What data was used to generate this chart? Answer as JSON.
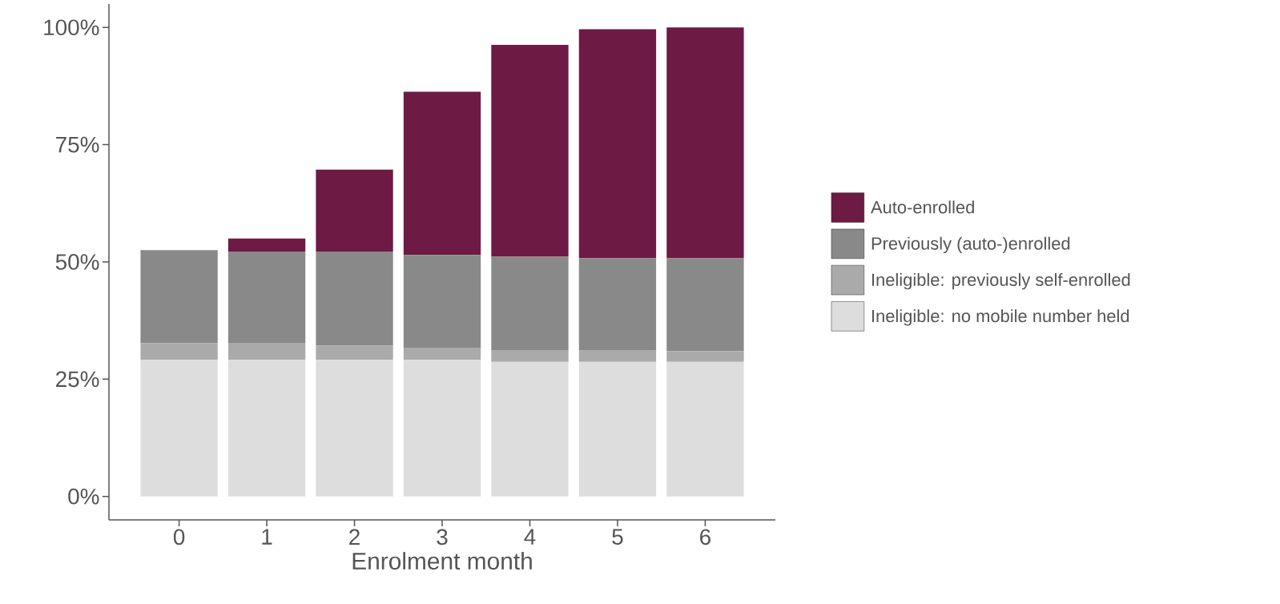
{
  "chart_data": {
    "type": "bar",
    "stacked": true,
    "xlabel": "Enrolment month",
    "categories": [
      "0",
      "1",
      "2",
      "3",
      "4",
      "5",
      "6"
    ],
    "series": [
      {
        "name": "Ineligible: no mobile number held",
        "color": "#dddddd",
        "values": [
          29.1,
          29.1,
          29.1,
          29.1,
          28.7,
          28.7,
          28.7
        ]
      },
      {
        "name": "Ineligible: previously self-enrolled",
        "color": "#aaaaaa",
        "values": [
          3.6,
          3.5,
          3.1,
          2.6,
          2.5,
          2.5,
          2.3
        ]
      },
      {
        "name": "Previously (auto-)enrolled",
        "color": "#898989",
        "values": [
          19.8,
          19.6,
          20.0,
          19.8,
          19.9,
          19.6,
          19.8
        ]
      },
      {
        "name": "Auto-enrolled",
        "color": "#6d1a45",
        "values": [
          0,
          2.8,
          17.5,
          34.8,
          45.2,
          48.8,
          49.2
        ]
      }
    ],
    "ylim": [
      -5,
      105
    ],
    "yticks": [
      {
        "value": 0,
        "label": "0%"
      },
      {
        "value": 25,
        "label": "25%"
      },
      {
        "value": 50,
        "label": "50%"
      },
      {
        "value": 75,
        "label": "75%"
      },
      {
        "value": 100,
        "label": "100%"
      }
    ],
    "grid": false,
    "legend": "right"
  }
}
